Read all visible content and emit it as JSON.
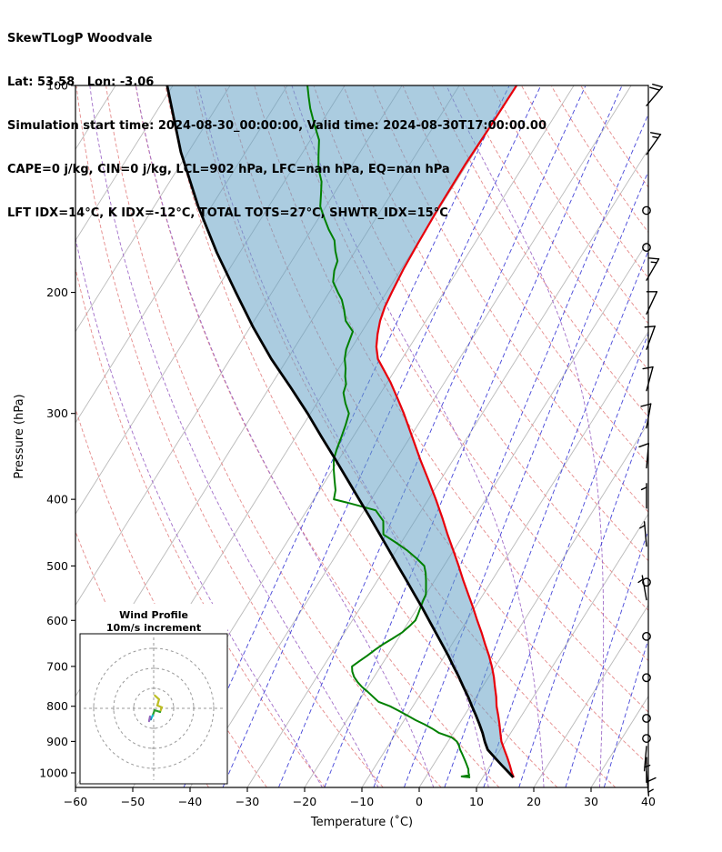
{
  "header": {
    "line1": "SkewTLogP Woodvale",
    "line2": "Lat: 53.58   Lon: -3.06",
    "line3": "Simulation start time: 2024-08-30_00:00:00, Valid time: 2024-08-30T17:00:00.00",
    "line4": "CAPE=0 j/kg, CIN=0 j/kg, LCL=902 hPa, LFC=nan hPa, EQ=nan hPa",
    "line5": "LFT IDX=14°C, K IDX=-12°C, TOTAL TOTS=27°C, SHWTR_IDX=15°C"
  },
  "chart_data": {
    "type": "skewt_logp",
    "title": "SkewTLogP Woodvale",
    "xlabel": "Temperature (˚C)",
    "ylabel": "Pressure (hPa)",
    "xlim": [
      -60,
      40
    ],
    "pressure_range": [
      100,
      1050
    ],
    "x_ticks": [
      -60,
      -50,
      -40,
      -30,
      -20,
      -10,
      0,
      10,
      20,
      30,
      40
    ],
    "x_tick_labels": [
      "−60",
      "−50",
      "−40",
      "−30",
      "−20",
      "−10",
      "0",
      "10",
      "20",
      "30",
      "40"
    ],
    "p_ticks": [
      100,
      200,
      300,
      400,
      500,
      600,
      700,
      800,
      900,
      1000
    ],
    "skew_total_degC": 77,
    "isotherm_step": 10,
    "dry_adiabats_thetaC": [
      -40,
      -30,
      -20,
      -10,
      0,
      10,
      20,
      30,
      40,
      50,
      60,
      70,
      80,
      90,
      100,
      110,
      120,
      130,
      140,
      150,
      160
    ],
    "moist_adiabats_thetawC": [
      -20,
      -10,
      0,
      10,
      20,
      30
    ],
    "mixing_ratios_gkg": [
      0.1,
      0.2,
      0.5,
      1,
      2,
      3,
      5,
      8,
      12,
      20,
      30
    ],
    "colors": {
      "isotherm": "#b9b9b9",
      "dry_adiabat": "#e58a8a",
      "moist_adiabat": "#a06cc8",
      "mixing_ratio": "#4545d8",
      "temperature": "#e8000b",
      "dewpoint": "#008000",
      "parcel": "#000000",
      "shading": "rgba(102,162,198,0.55)",
      "barb": "#000000"
    },
    "temperature": [
      [
        1015,
        15.4
      ],
      [
        1000,
        14.6
      ],
      [
        975,
        13.4
      ],
      [
        950,
        12.1
      ],
      [
        925,
        10.7
      ],
      [
        900,
        9.3
      ],
      [
        875,
        8.2
      ],
      [
        850,
        7.1
      ],
      [
        825,
        5.9
      ],
      [
        800,
        4.6
      ],
      [
        775,
        3.5
      ],
      [
        750,
        2.2
      ],
      [
        725,
        0.9
      ],
      [
        700,
        -0.6
      ],
      [
        675,
        -2.3
      ],
      [
        650,
        -4.2
      ],
      [
        625,
        -6.1
      ],
      [
        600,
        -8.2
      ],
      [
        575,
        -10.3
      ],
      [
        550,
        -12.6
      ],
      [
        525,
        -15.0
      ],
      [
        500,
        -17.4
      ],
      [
        475,
        -20.0
      ],
      [
        450,
        -22.8
      ],
      [
        425,
        -25.6
      ],
      [
        400,
        -28.7
      ],
      [
        375,
        -32.1
      ],
      [
        350,
        -35.8
      ],
      [
        325,
        -39.6
      ],
      [
        300,
        -43.7
      ],
      [
        285,
        -46.5
      ],
      [
        270,
        -49.5
      ],
      [
        260,
        -51.8
      ],
      [
        250,
        -54.2
      ],
      [
        240,
        -55.8
      ],
      [
        230,
        -57.0
      ],
      [
        220,
        -58.0
      ],
      [
        210,
        -58.7
      ],
      [
        200,
        -59.1
      ],
      [
        185,
        -59.6
      ],
      [
        170,
        -59.9
      ],
      [
        150,
        -60.2
      ],
      [
        130,
        -60.3
      ],
      [
        115,
        -60.1
      ],
      [
        100,
        -60.0
      ]
    ],
    "dewpoint": [
      [
        1015,
        7.8
      ],
      [
        1012,
        6.2
      ],
      [
        1008,
        7.4
      ],
      [
        1000,
        7.0
      ],
      [
        988,
        6.6
      ],
      [
        975,
        5.9
      ],
      [
        962,
        5.2
      ],
      [
        950,
        4.5
      ],
      [
        938,
        3.8
      ],
      [
        925,
        3.0
      ],
      [
        912,
        2.3
      ],
      [
        900,
        1.5
      ],
      [
        888,
        0.2
      ],
      [
        875,
        -2.5
      ],
      [
        862,
        -4.2
      ],
      [
        850,
        -6.0
      ],
      [
        838,
        -8.0
      ],
      [
        825,
        -10.0
      ],
      [
        812,
        -12.0
      ],
      [
        800,
        -14.0
      ],
      [
        788,
        -16.5
      ],
      [
        775,
        -18.0
      ],
      [
        762,
        -19.5
      ],
      [
        750,
        -21.0
      ],
      [
        738,
        -22.3
      ],
      [
        725,
        -23.5
      ],
      [
        712,
        -24.4
      ],
      [
        700,
        -25.0
      ],
      [
        688,
        -24.3
      ],
      [
        675,
        -23.5
      ],
      [
        662,
        -22.8
      ],
      [
        650,
        -22.0
      ],
      [
        638,
        -21.0
      ],
      [
        625,
        -20.0
      ],
      [
        612,
        -19.4
      ],
      [
        600,
        -19.0
      ],
      [
        588,
        -19.2
      ],
      [
        575,
        -19.5
      ],
      [
        562,
        -19.8
      ],
      [
        550,
        -20.0
      ],
      [
        538,
        -20.7
      ],
      [
        525,
        -21.5
      ],
      [
        512,
        -22.4
      ],
      [
        500,
        -23.4
      ],
      [
        488,
        -25.5
      ],
      [
        475,
        -28.0
      ],
      [
        462,
        -31.0
      ],
      [
        450,
        -34.0
      ],
      [
        430,
        -35.5
      ],
      [
        415,
        -38.0
      ],
      [
        405,
        -43.5
      ],
      [
        400,
        -46.5
      ],
      [
        388,
        -47.2
      ],
      [
        375,
        -48.5
      ],
      [
        362,
        -49.8
      ],
      [
        350,
        -50.9
      ],
      [
        338,
        -51.5
      ],
      [
        325,
        -52.0
      ],
      [
        312,
        -52.6
      ],
      [
        300,
        -53.3
      ],
      [
        290,
        -55.0
      ],
      [
        280,
        -56.5
      ],
      [
        272,
        -57.0
      ],
      [
        265,
        -58.0
      ],
      [
        258,
        -58.8
      ],
      [
        250,
        -60.0
      ],
      [
        242,
        -60.8
      ],
      [
        235,
        -61.2
      ],
      [
        228,
        -61.6
      ],
      [
        220,
        -64.0
      ],
      [
        212,
        -65.5
      ],
      [
        205,
        -67.0
      ],
      [
        200,
        -68.5
      ],
      [
        193,
        -70.5
      ],
      [
        186,
        -71.5
      ],
      [
        180,
        -72.0
      ],
      [
        174,
        -73.5
      ],
      [
        168,
        -74.8
      ],
      [
        162,
        -77.0
      ],
      [
        156,
        -79.0
      ],
      [
        150,
        -81.0
      ],
      [
        144,
        -82.2
      ],
      [
        138,
        -83.5
      ],
      [
        132,
        -85.5
      ],
      [
        126,
        -87.0
      ],
      [
        120,
        -88.5
      ],
      [
        114,
        -91.0
      ],
      [
        108,
        -93.5
      ],
      [
        104,
        -95.0
      ],
      [
        100,
        -96.5
      ]
    ],
    "parcel": [
      [
        1015,
        15.3
      ],
      [
        1000,
        14.1
      ],
      [
        975,
        12.0
      ],
      [
        950,
        9.9
      ],
      [
        925,
        7.8
      ],
      [
        902,
        6.5
      ],
      [
        875,
        5.1
      ],
      [
        850,
        3.6
      ],
      [
        825,
        2.0
      ],
      [
        800,
        0.3
      ],
      [
        775,
        -1.4
      ],
      [
        750,
        -3.3
      ],
      [
        725,
        -5.2
      ],
      [
        700,
        -7.3
      ],
      [
        675,
        -9.4
      ],
      [
        650,
        -11.7
      ],
      [
        625,
        -14.1
      ],
      [
        600,
        -16.6
      ],
      [
        575,
        -19.2
      ],
      [
        550,
        -22.0
      ],
      [
        525,
        -24.9
      ],
      [
        500,
        -28.0
      ],
      [
        475,
        -31.2
      ],
      [
        450,
        -34.6
      ],
      [
        425,
        -38.2
      ],
      [
        400,
        -42.1
      ],
      [
        375,
        -46.2
      ],
      [
        350,
        -50.6
      ],
      [
        325,
        -55.4
      ],
      [
        300,
        -60.5
      ],
      [
        275,
        -66.3
      ],
      [
        250,
        -72.8
      ],
      [
        225,
        -79.4
      ],
      [
        200,
        -86.3
      ],
      [
        175,
        -94.0
      ],
      [
        150,
        -102.3
      ],
      [
        125,
        -111.3
      ],
      [
        100,
        -121.0
      ]
    ],
    "wind_barbs": [
      {
        "p": 107,
        "spd": 20,
        "dir": 40
      },
      {
        "p": 126,
        "spd": 15,
        "dir": 35
      },
      {
        "p": 152,
        "spd": 0,
        "dir": 0
      },
      {
        "p": 172,
        "spd": 0,
        "dir": 0
      },
      {
        "p": 192,
        "spd": 15,
        "dir": 30
      },
      {
        "p": 215,
        "spd": 10,
        "dir": 25
      },
      {
        "p": 242,
        "spd": 10,
        "dir": 20
      },
      {
        "p": 278,
        "spd": 10,
        "dir": 15
      },
      {
        "p": 315,
        "spd": 10,
        "dir": 10
      },
      {
        "p": 360,
        "spd": 10,
        "dir": 5
      },
      {
        "p": 412,
        "spd": 5,
        "dir": 0
      },
      {
        "p": 468,
        "spd": 5,
        "dir": 355
      },
      {
        "p": 528,
        "spd": 0,
        "dir": 0
      },
      {
        "p": 560,
        "spd": 5,
        "dir": 350
      },
      {
        "p": 633,
        "spd": 0,
        "dir": 0
      },
      {
        "p": 727,
        "spd": 0,
        "dir": 0
      },
      {
        "p": 833,
        "spd": 0,
        "dir": 0
      },
      {
        "p": 891,
        "spd": 0,
        "dir": 0
      },
      {
        "p": 915,
        "spd": 5,
        "dir": 185
      },
      {
        "p": 950,
        "spd": 10,
        "dir": 180
      },
      {
        "p": 995,
        "spd": 5,
        "dir": 175
      }
    ],
    "hodograph": {
      "title1": "Wind Profile",
      "title2": "10m/s increment",
      "ring_interval_ms": 10,
      "rings": [
        10,
        20,
        30
      ],
      "trace": [
        {
          "color": "#bcbd22",
          "pts": [
            [
              0.6,
              6.4
            ],
            [
              2.7,
              4.5
            ],
            [
              1.8,
              1.4
            ],
            [
              4.1,
              0.5
            ],
            [
              3.2,
              -1.8
            ]
          ]
        },
        {
          "color": "#2ca02c",
          "pts": [
            [
              3.2,
              -1.8
            ],
            [
              0.5,
              -0.9
            ],
            [
              -0.5,
              -3.6
            ]
          ]
        },
        {
          "color": "#17becf",
          "pts": [
            [
              -0.5,
              -3.6
            ],
            [
              -1.4,
              -5.5
            ]
          ]
        },
        {
          "color": "#1f77b4",
          "pts": [
            [
              -1.4,
              -5.5
            ],
            [
              -1.8,
              -4.1
            ]
          ]
        },
        {
          "color": "#9467bd",
          "pts": [
            [
              -1.8,
              -4.1
            ],
            [
              -2.3,
              -6.4
            ]
          ]
        }
      ]
    }
  }
}
